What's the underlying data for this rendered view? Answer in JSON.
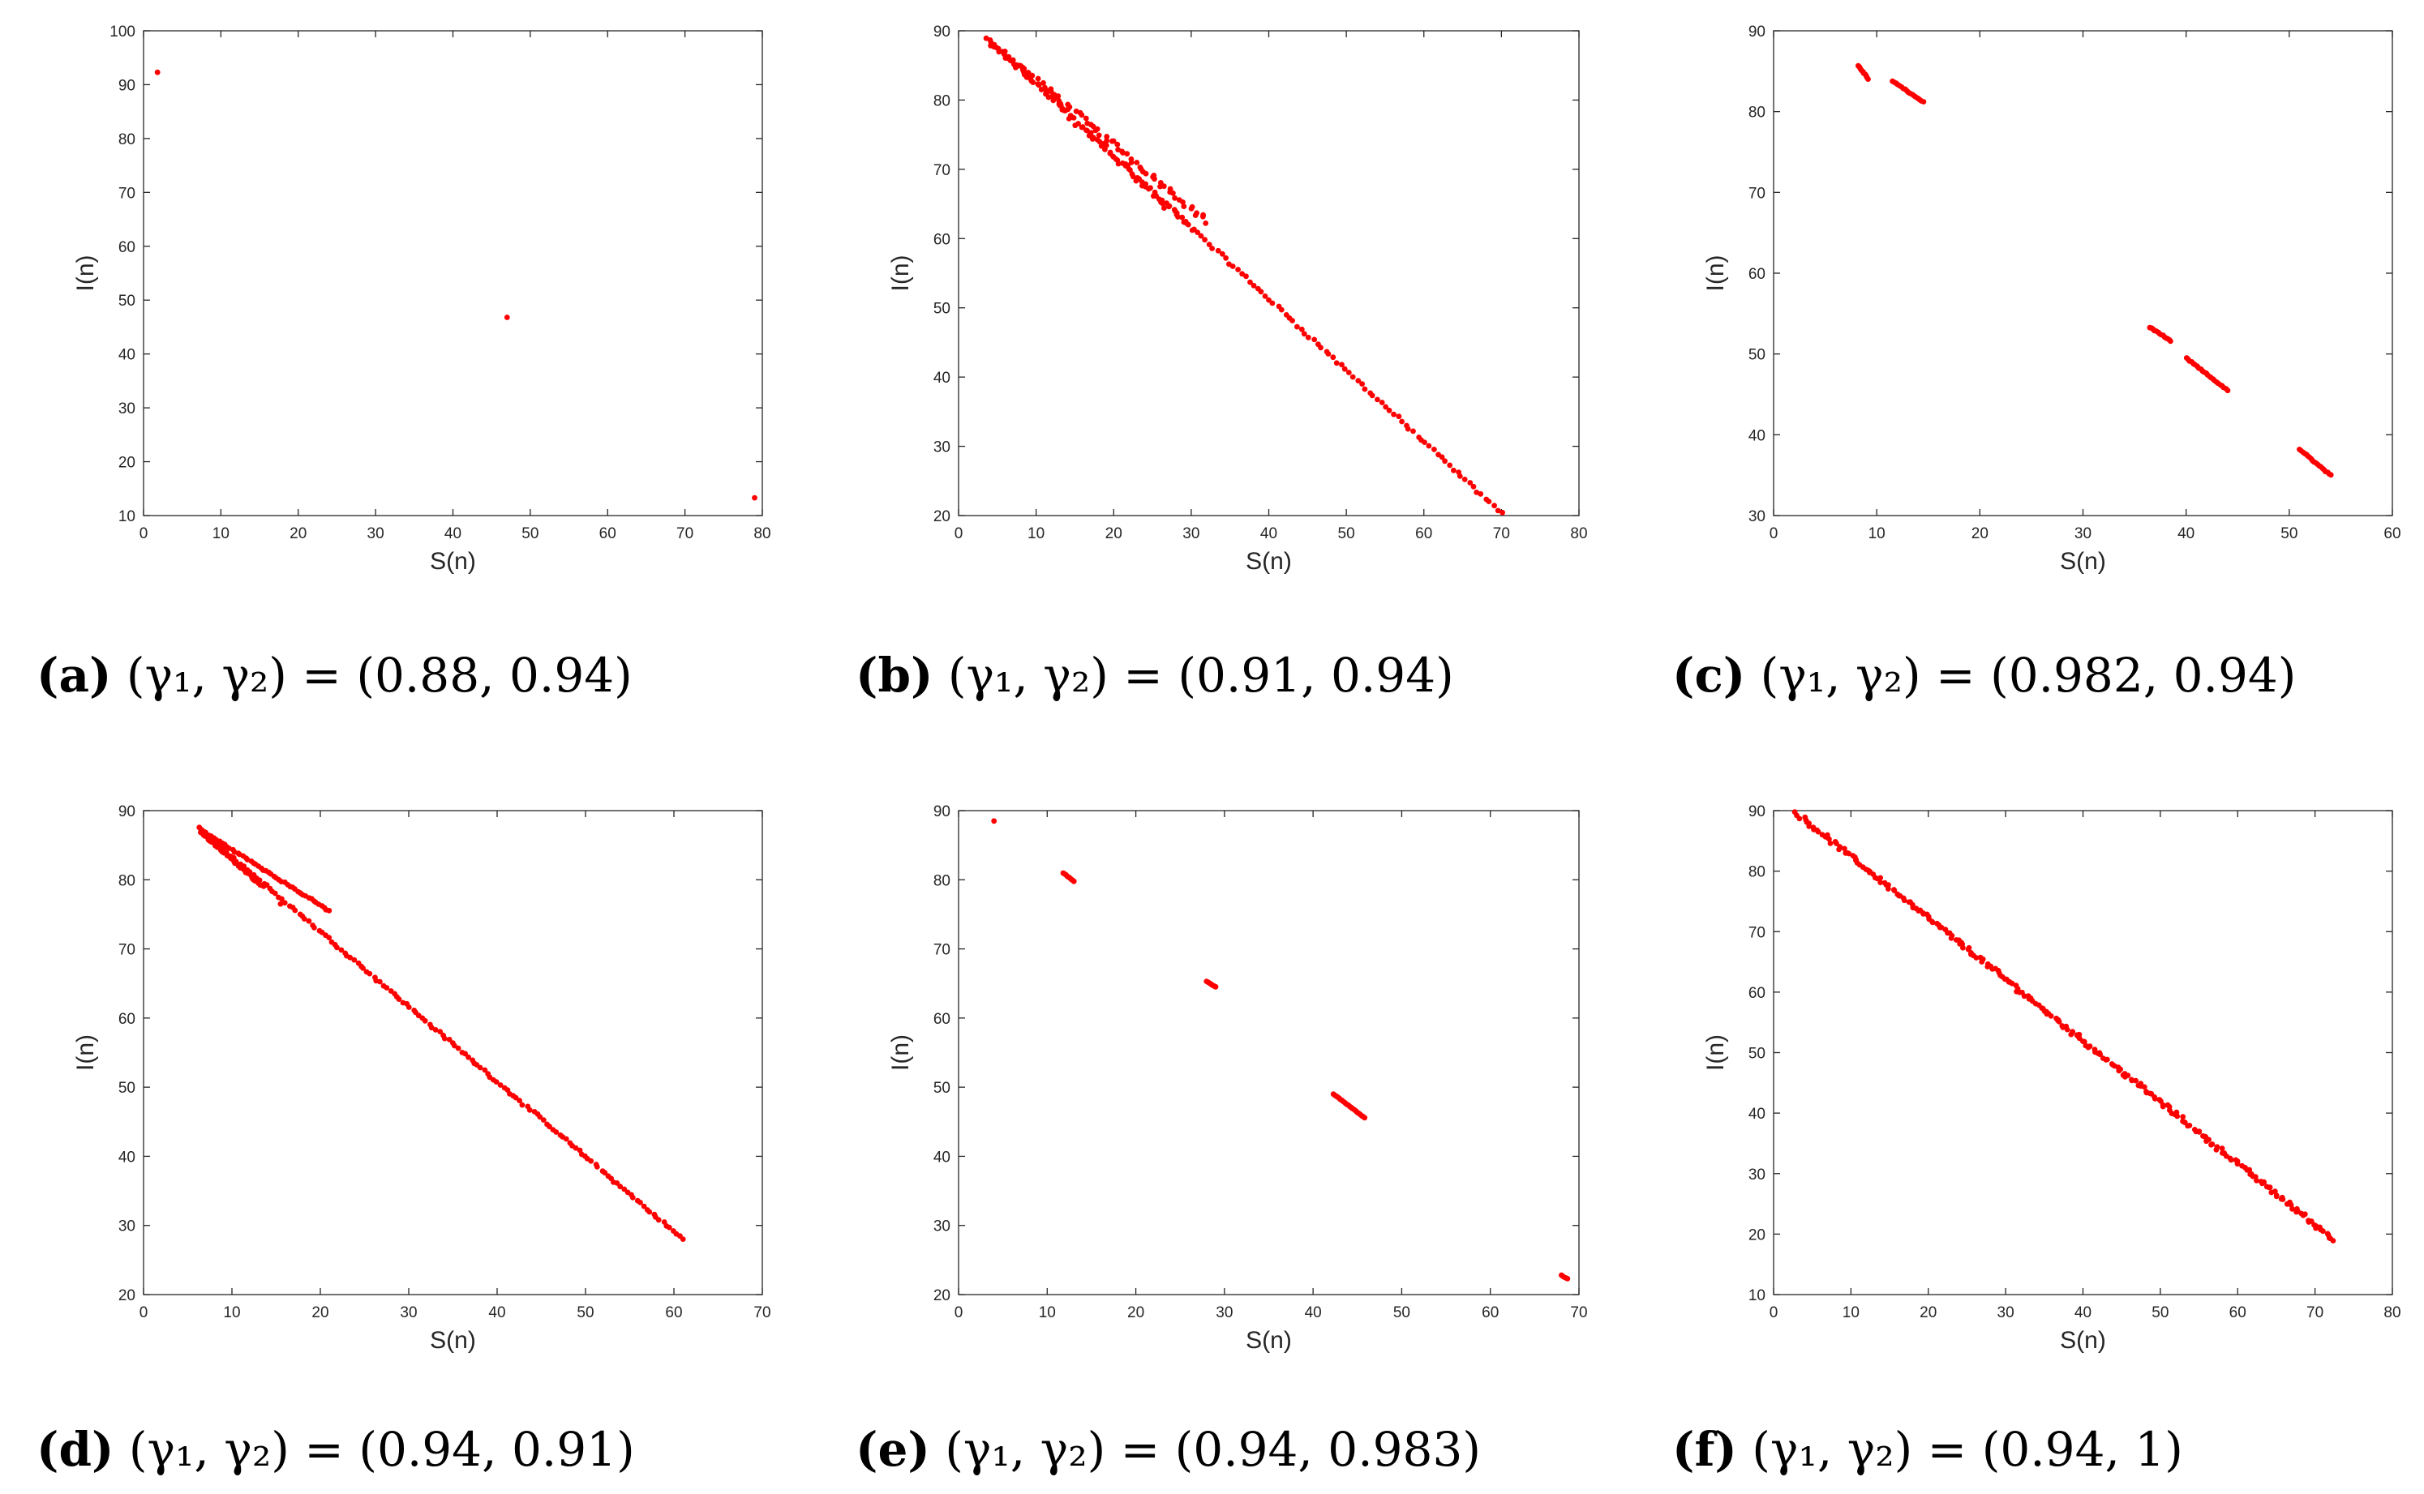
{
  "figure_colors": {
    "point": "#ff0000",
    "axis": "#262626",
    "background": "#ffffff"
  },
  "chart_data": [
    {
      "type": "scatter",
      "panel": "a",
      "caption_letter": "(a)",
      "caption_rest": " (γ₁, γ₂) = (0.88, 0.94)",
      "xlabel": "S(n)",
      "ylabel": "I(n)",
      "xlim": [
        0,
        80
      ],
      "ylim": [
        10,
        100
      ],
      "xticks": [
        0,
        10,
        20,
        30,
        40,
        50,
        60,
        70,
        80
      ],
      "yticks": [
        10,
        20,
        30,
        40,
        50,
        60,
        70,
        80,
        90,
        100
      ],
      "segments": [],
      "points": [
        [
          1.8,
          92.3
        ],
        [
          47,
          46.8
        ],
        [
          79,
          13.3
        ]
      ]
    },
    {
      "type": "scatter",
      "panel": "b",
      "caption_letter": "(b)",
      "caption_rest": " (γ₁, γ₂) = (0.91, 0.94)",
      "xlabel": "S(n)",
      "ylabel": "I(n)",
      "xlim": [
        0,
        80
      ],
      "ylim": [
        20,
        90
      ],
      "xticks": [
        0,
        10,
        20,
        30,
        40,
        50,
        60,
        70,
        80
      ],
      "yticks": [
        20,
        30,
        40,
        50,
        60,
        70,
        80,
        90
      ],
      "segments": [
        {
          "from": [
            3.5,
            89
          ],
          "to": [
            70,
            20.3
          ],
          "n": 130,
          "jitter": 0.4
        },
        {
          "from": [
            4,
            88.5
          ],
          "to": [
            32,
            62.5
          ],
          "n": 75,
          "jitter": 0.7
        },
        {
          "from": [
            6,
            86.5
          ],
          "to": [
            30,
            61.5
          ],
          "n": 55,
          "jitter": 0.9
        }
      ],
      "points": []
    },
    {
      "type": "scatter",
      "panel": "c",
      "caption_letter": "(c)",
      "caption_rest": " (γ₁, γ₂) = (0.982, 0.94)",
      "xlabel": "S(n)",
      "ylabel": "I(n)",
      "xlim": [
        0,
        60
      ],
      "ylim": [
        30,
        90
      ],
      "xticks": [
        0,
        10,
        20,
        30,
        40,
        50,
        60
      ],
      "yticks": [
        30,
        40,
        50,
        60,
        70,
        80,
        90
      ],
      "segments": [
        {
          "from": [
            8.2,
            85.7
          ],
          "to": [
            9.2,
            84.0
          ],
          "n": 10,
          "jitter": 0.1
        },
        {
          "from": [
            11.5,
            83.8
          ],
          "to": [
            14.5,
            81.2
          ],
          "n": 18,
          "jitter": 0.1
        },
        {
          "from": [
            36.5,
            53.3
          ],
          "to": [
            38.5,
            51.6
          ],
          "n": 14,
          "jitter": 0.1
        },
        {
          "from": [
            40,
            49.5
          ],
          "to": [
            44,
            45.5
          ],
          "n": 24,
          "jitter": 0.1
        },
        {
          "from": [
            51,
            38.2
          ],
          "to": [
            54,
            35
          ],
          "n": 20,
          "jitter": 0.1
        }
      ],
      "points": []
    },
    {
      "type": "scatter",
      "panel": "d",
      "caption_letter": "(d)",
      "caption_rest": " (γ₁, γ₂) = (0.94, 0.91)",
      "xlabel": "S(n)",
      "ylabel": "I(n)",
      "xlim": [
        0,
        70
      ],
      "ylim": [
        20,
        90
      ],
      "xticks": [
        0,
        10,
        20,
        30,
        40,
        50,
        60,
        70
      ],
      "yticks": [
        20,
        30,
        40,
        50,
        60,
        70,
        80,
        90
      ],
      "segments": [
        {
          "from": [
            6.2,
            87.5
          ],
          "to": [
            61,
            28
          ],
          "n": 150,
          "jitter": 0.3
        },
        {
          "from": [
            6.5,
            87.2
          ],
          "to": [
            21,
            75.5
          ],
          "n": 50,
          "jitter": 0.2
        },
        {
          "from": [
            6.5,
            86.8
          ],
          "to": [
            13.5,
            79
          ],
          "n": 35,
          "jitter": 0.2
        }
      ],
      "points": [
        [
          15.5,
          76.5
        ]
      ]
    },
    {
      "type": "scatter",
      "panel": "e",
      "caption_letter": "(e)",
      "caption_rest": " (γ₁, γ₂) = (0.94, 0.983)",
      "xlabel": "S(n)",
      "ylabel": "I(n)",
      "xlim": [
        0,
        70
      ],
      "ylim": [
        20,
        90
      ],
      "xticks": [
        0,
        10,
        20,
        30,
        40,
        50,
        60,
        70
      ],
      "yticks": [
        20,
        30,
        40,
        50,
        60,
        70,
        80,
        90
      ],
      "segments": [
        {
          "from": [
            11.8,
            81
          ],
          "to": [
            13,
            79.8
          ],
          "n": 10,
          "jitter": 0.05
        },
        {
          "from": [
            28,
            65.3
          ],
          "to": [
            29,
            64.5
          ],
          "n": 8,
          "jitter": 0.05
        },
        {
          "from": [
            42.3,
            49
          ],
          "to": [
            45.8,
            45.6
          ],
          "n": 24,
          "jitter": 0.05
        },
        {
          "from": [
            68,
            22.8
          ],
          "to": [
            68.7,
            22.3
          ],
          "n": 5,
          "jitter": 0.05
        }
      ],
      "points": [
        [
          4,
          88.5
        ]
      ]
    },
    {
      "type": "scatter",
      "panel": "f",
      "caption_letter": "(f)",
      "caption_rest": " (γ₁, γ₂) = (0.94, 1)",
      "xlabel": "S(n)",
      "ylabel": "I(n)",
      "xlim": [
        0,
        80
      ],
      "ylim": [
        10,
        90
      ],
      "xticks": [
        0,
        10,
        20,
        30,
        40,
        50,
        60,
        70,
        80
      ],
      "yticks": [
        10,
        20,
        30,
        40,
        50,
        60,
        70,
        80,
        90
      ],
      "segments": [
        {
          "from": [
            3,
            89.5
          ],
          "to": [
            72.5,
            19
          ],
          "n": 260,
          "jitter": 0.6
        }
      ],
      "points": []
    }
  ]
}
